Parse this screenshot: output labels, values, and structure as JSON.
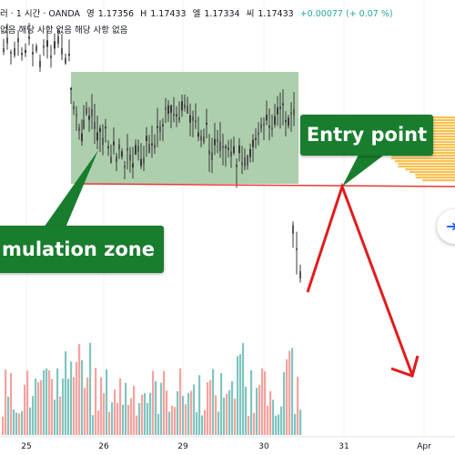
{
  "legend": {
    "title": "러 · 1 시간 · OANDA",
    "open_label": "영",
    "open_value": "1.17356",
    "high_label": "H",
    "high_value": "1.17433",
    "low_label": "엘",
    "low_value": "1.17334",
    "close_label": "씨",
    "close_value": "1.17433",
    "change": "+0.00077 (+ 0.07 %)"
  },
  "sub_legend": "없음 해당 사항 없음 해당 사항 없음",
  "callouts": {
    "entry": "Entry point",
    "accumulation": "mulation zone"
  },
  "colors": {
    "accumulation_zone": "#8fbc8f",
    "support_line": "#e53935",
    "arrow": "#e31b1b",
    "callout_bg": "#197d2e",
    "volume_up": "#80c5c0",
    "volume_down": "#f4a39e",
    "volume_profile": "#f7b733"
  },
  "icons": {
    "scroll_button": "arrow-right-icon"
  },
  "chart_data": {
    "type": "candlestick",
    "x_ticks": [
      "25",
      "26",
      "29",
      "30",
      "31",
      "Apr"
    ],
    "price_range": [
      1.1695,
      1.179
    ],
    "support_level": 1.1731,
    "accumulation_zone": {
      "from": "25",
      "to": "30",
      "price_low": 1.1731,
      "price_high": 1.176
    },
    "projection": [
      {
        "point": "entry",
        "x": "31",
        "price": 1.1731
      },
      {
        "point": "target",
        "x": "Apr",
        "price": 1.1695
      }
    ],
    "volume": "shown as red/teal bars along the bottom"
  }
}
